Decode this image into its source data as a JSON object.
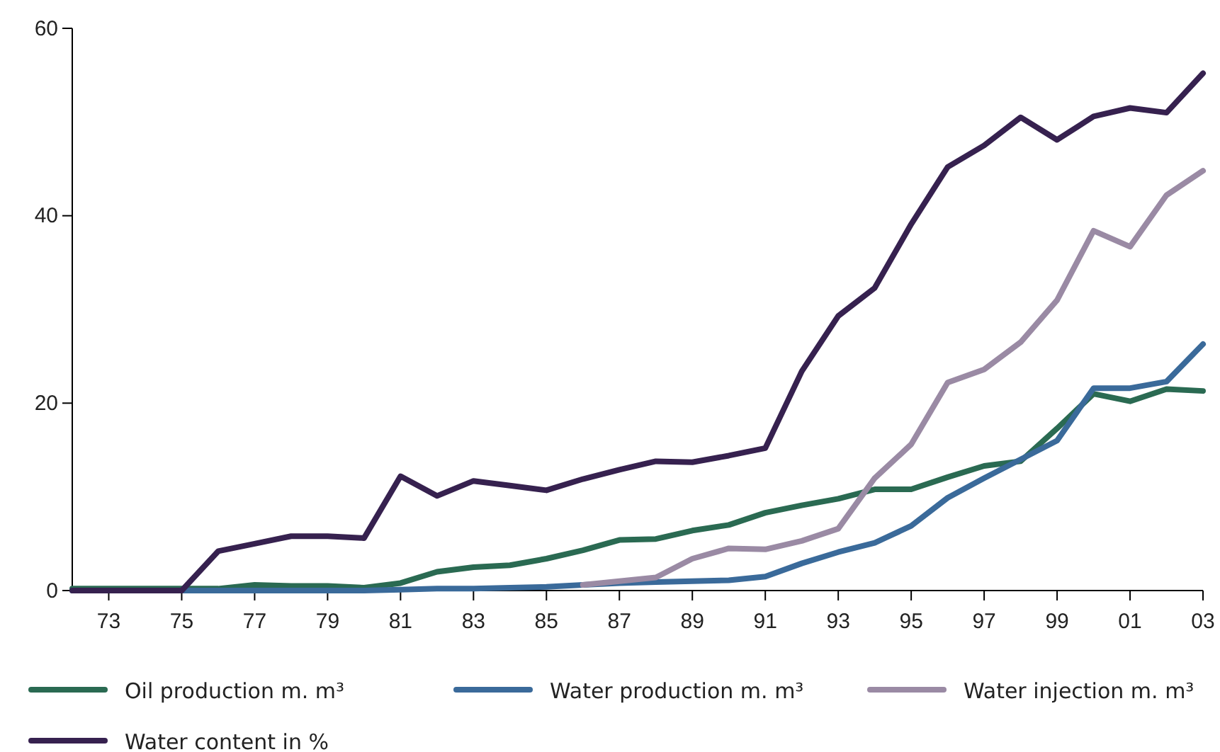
{
  "chart_data": {
    "type": "line",
    "x": [
      1972,
      1973,
      1974,
      1975,
      1976,
      1977,
      1978,
      1979,
      1980,
      1981,
      1982,
      1983,
      1984,
      1985,
      1986,
      1987,
      1988,
      1989,
      1990,
      1991,
      1992,
      1993,
      1994,
      1995,
      1996,
      1997,
      1998,
      1999,
      2000,
      2001,
      2002,
      2003
    ],
    "xlim": [
      1972,
      2003
    ],
    "xticks": [
      {
        "value": 1973,
        "label": "73"
      },
      {
        "value": 1975,
        "label": "75"
      },
      {
        "value": 1977,
        "label": "77"
      },
      {
        "value": 1979,
        "label": "79"
      },
      {
        "value": 1981,
        "label": "81"
      },
      {
        "value": 1983,
        "label": "83"
      },
      {
        "value": 1985,
        "label": "85"
      },
      {
        "value": 1987,
        "label": "87"
      },
      {
        "value": 1989,
        "label": "89"
      },
      {
        "value": 1991,
        "label": "91"
      },
      {
        "value": 1993,
        "label": "93"
      },
      {
        "value": 1995,
        "label": "95"
      },
      {
        "value": 1997,
        "label": "97"
      },
      {
        "value": 1999,
        "label": "99"
      },
      {
        "value": 2001,
        "label": "01"
      },
      {
        "value": 2003,
        "label": "03"
      }
    ],
    "ylim": [
      0,
      60
    ],
    "yticks": [
      0,
      20,
      40,
      60
    ],
    "grid": false,
    "legend": "bottom",
    "marker": "none",
    "line_style": "solid",
    "series": [
      {
        "name": "Oil production m. m³",
        "color": "#2a6a52",
        "values": [
          0.2,
          0.2,
          0.2,
          0.2,
          0.2,
          0.6,
          0.5,
          0.5,
          0.3,
          0.8,
          2.0,
          2.5,
          2.7,
          3.4,
          4.3,
          5.4,
          5.5,
          6.4,
          7.0,
          8.3,
          9.1,
          9.8,
          10.8,
          10.8,
          12.1,
          13.3,
          13.8,
          17.3,
          21.0,
          20.2,
          21.5,
          21.3
        ]
      },
      {
        "name": "Water production m. m³",
        "color": "#3a6a9a",
        "values": [
          0,
          0,
          0,
          0,
          0,
          0,
          0,
          0,
          0,
          0.1,
          0.2,
          0.2,
          0.3,
          0.4,
          0.6,
          0.8,
          0.9,
          1.0,
          1.1,
          1.5,
          2.9,
          4.1,
          5.1,
          6.9,
          9.9,
          12.0,
          14.0,
          16.0,
          21.6,
          21.6,
          22.3,
          26.3
        ]
      },
      {
        "name": "Water injection m. m³",
        "color": "#9a8aa4",
        "values": [
          null,
          null,
          null,
          null,
          null,
          null,
          null,
          null,
          null,
          null,
          null,
          null,
          null,
          null,
          0.6,
          1.0,
          1.4,
          3.4,
          4.5,
          4.4,
          5.3,
          6.6,
          12.0,
          15.6,
          22.2,
          23.6,
          26.5,
          31.0,
          38.4,
          36.7,
          42.2,
          44.8
        ]
      },
      {
        "name": "Water content in %",
        "color": "#36214f",
        "values": [
          0,
          0,
          0,
          0,
          4.2,
          5.0,
          5.8,
          5.8,
          5.6,
          12.2,
          10.1,
          11.7,
          11.2,
          10.7,
          11.9,
          12.9,
          13.8,
          13.7,
          14.4,
          15.2,
          23.4,
          29.3,
          32.3,
          39.1,
          45.2,
          47.5,
          50.5,
          48.1,
          50.6,
          51.5,
          51.0,
          55.2
        ]
      }
    ]
  }
}
